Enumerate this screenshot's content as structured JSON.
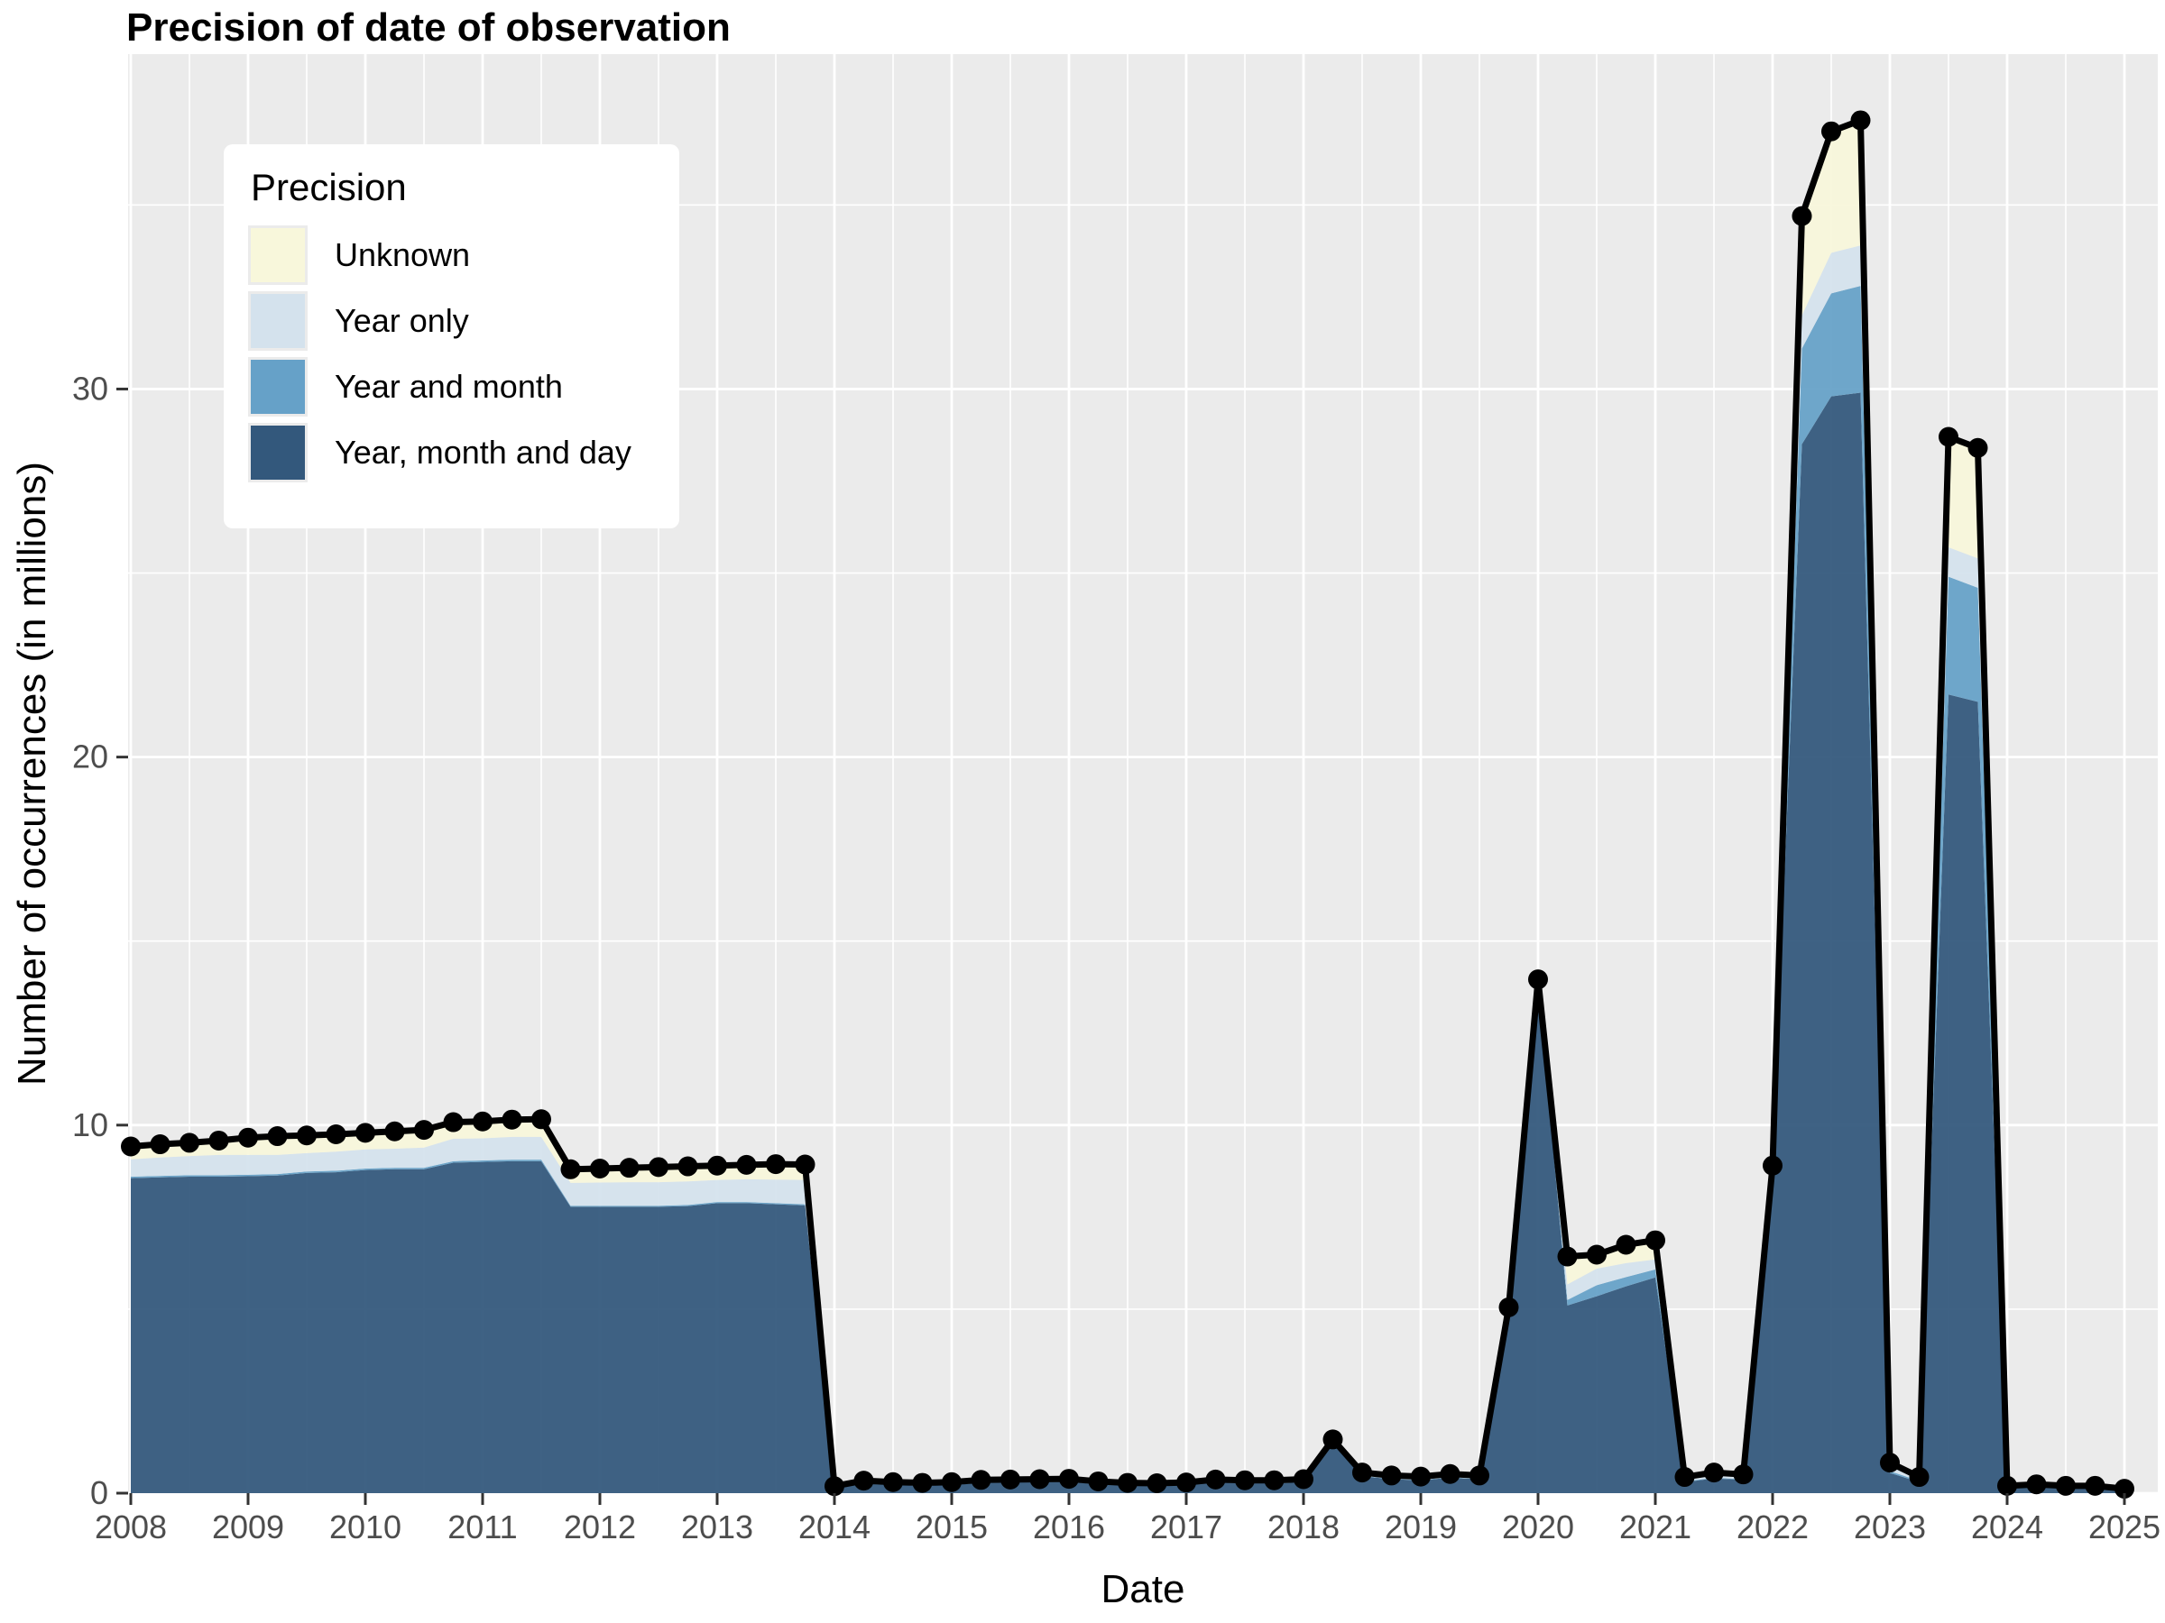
{
  "title": "Precision of date of observation",
  "axes": {
    "x_label": "Date",
    "y_label": "Number of occurrences (in millions)",
    "x_ticks": [
      "2008",
      "2009",
      "2010",
      "2011",
      "2012",
      "2013",
      "2014",
      "2015",
      "2016",
      "2017",
      "2018",
      "2019",
      "2020",
      "2021",
      "2022",
      "2023",
      "2024",
      "2025"
    ],
    "y_ticks": [
      "0",
      "10",
      "20",
      "30"
    ]
  },
  "legend": {
    "title": "Precision",
    "position": "inside top-left",
    "items": [
      {
        "label": "Unknown",
        "color": "#F8F7DB"
      },
      {
        "label": "Year only",
        "color": "#D4E2ED"
      },
      {
        "label": "Year and month",
        "color": "#66A1C8"
      },
      {
        "label": "Year, month and day",
        "color": "#33587C"
      }
    ]
  },
  "colors": {
    "panel_bg": "#EBEBEB",
    "grid": "#FFFFFF",
    "line": "#000000",
    "point": "#000000",
    "tick_text": "#4D4D4D",
    "tick_mark": "#333333"
  },
  "chart_data": {
    "type": "area",
    "stacked": true,
    "title": "Precision of date of observation",
    "xlabel": "Date",
    "ylabel": "Number of occurrences (in millions)",
    "legend_title": "Precision",
    "grid": "white major/minor gridlines on gray panel",
    "legend_position": "inside top-left",
    "overlay": "black total line with point markers at each quarter",
    "x_range": [
      2008,
      2025
    ],
    "ylim": [
      0,
      39.1
    ],
    "x_tick_vals": [
      2008,
      2009,
      2010,
      2011,
      2012,
      2013,
      2014,
      2015,
      2016,
      2017,
      2018,
      2019,
      2020,
      2021,
      2022,
      2023,
      2024,
      2025
    ],
    "y_tick_vals": [
      0,
      10,
      20,
      30
    ],
    "y_minor_vals": [
      5,
      15,
      25,
      35
    ],
    "x": [
      2008,
      2008.25,
      2008.5,
      2008.75,
      2009,
      2009.25,
      2009.5,
      2009.75,
      2010,
      2010.25,
      2010.5,
      2010.75,
      2011,
      2011.25,
      2011.5,
      2011.75,
      2012,
      2012.25,
      2012.5,
      2012.75,
      2013,
      2013.25,
      2013.5,
      2013.75,
      2014,
      2014.25,
      2014.5,
      2014.75,
      2015,
      2015.25,
      2015.5,
      2015.75,
      2016,
      2016.25,
      2016.5,
      2016.75,
      2017,
      2017.25,
      2017.5,
      2017.75,
      2018,
      2018.25,
      2018.5,
      2018.75,
      2019,
      2019.25,
      2019.5,
      2019.75,
      2020,
      2020.25,
      2020.5,
      2020.75,
      2021,
      2021.25,
      2021.5,
      2021.75,
      2022,
      2022.25,
      2022.5,
      2022.75,
      2023,
      2023.25,
      2023.5,
      2023.75,
      2024,
      2024.25,
      2024.5,
      2024.75,
      2025
    ],
    "series": [
      {
        "name": "Year, month and day",
        "color": "#33587C",
        "values": [
          8.56,
          8.58,
          8.6,
          8.6,
          8.61,
          8.63,
          8.7,
          8.72,
          8.78,
          8.8,
          8.8,
          8.98,
          9.0,
          9.02,
          9.02,
          7.78,
          7.78,
          7.78,
          7.78,
          7.8,
          7.88,
          7.88,
          7.85,
          7.82,
          0.13,
          0.26,
          0.22,
          0.2,
          0.22,
          0.28,
          0.29,
          0.3,
          0.31,
          0.24,
          0.21,
          0.2,
          0.22,
          0.29,
          0.27,
          0.27,
          0.29,
          1.36,
          0.46,
          0.38,
          0.35,
          0.42,
          0.38,
          4.95,
          13.85,
          5.1,
          5.35,
          5.62,
          5.86,
          0.3,
          0.4,
          0.36,
          8.75,
          28.5,
          29.8,
          29.9,
          0.55,
          0.3,
          21.7,
          21.5,
          0.15,
          0.18,
          0.15,
          0.15,
          0.08
        ]
      },
      {
        "name": "Year and month",
        "color": "#66A1C8",
        "values": [
          0.04,
          0.04,
          0.04,
          0.04,
          0.04,
          0.04,
          0.04,
          0.04,
          0.04,
          0.04,
          0.04,
          0.04,
          0.04,
          0.04,
          0.04,
          0.03,
          0.03,
          0.03,
          0.03,
          0.03,
          0.03,
          0.03,
          0.03,
          0.03,
          0.01,
          0.01,
          0.01,
          0.01,
          0.01,
          0.01,
          0.01,
          0.01,
          0.01,
          0.01,
          0.01,
          0.01,
          0.01,
          0.01,
          0.01,
          0.01,
          0.01,
          0.01,
          0.01,
          0.01,
          0.01,
          0.01,
          0.01,
          0.01,
          0.01,
          0.15,
          0.3,
          0.25,
          0.22,
          0.02,
          0.02,
          0.02,
          0.02,
          2.6,
          2.8,
          2.9,
          0.05,
          0.03,
          3.2,
          3.1,
          0.01,
          0.01,
          0.01,
          0.01,
          0.01
        ]
      },
      {
        "name": "Year only",
        "color": "#D4E2ED",
        "values": [
          0.47,
          0.5,
          0.52,
          0.55,
          0.54,
          0.52,
          0.5,
          0.52,
          0.52,
          0.52,
          0.55,
          0.61,
          0.6,
          0.62,
          0.62,
          0.62,
          0.63,
          0.64,
          0.64,
          0.64,
          0.6,
          0.62,
          0.64,
          0.66,
          0.02,
          0.03,
          0.03,
          0.03,
          0.03,
          0.03,
          0.03,
          0.03,
          0.03,
          0.03,
          0.03,
          0.03,
          0.03,
          0.03,
          0.03,
          0.03,
          0.04,
          0.04,
          0.04,
          0.04,
          0.04,
          0.04,
          0.04,
          0.04,
          0.05,
          0.42,
          0.45,
          0.38,
          0.27,
          0.09,
          0.11,
          0.1,
          0.06,
          0.9,
          1.1,
          1.1,
          0.13,
          0.08,
          0.8,
          0.8,
          0.02,
          0.03,
          0.02,
          0.02,
          0.02
        ]
      },
      {
        "name": "Unknown",
        "color": "#F8F7DB",
        "values": [
          0.35,
          0.36,
          0.36,
          0.39,
          0.47,
          0.51,
          0.48,
          0.47,
          0.45,
          0.47,
          0.48,
          0.45,
          0.46,
          0.47,
          0.48,
          0.37,
          0.38,
          0.39,
          0.41,
          0.41,
          0.39,
          0.39,
          0.42,
          0.42,
          0.03,
          0.04,
          0.04,
          0.04,
          0.04,
          0.04,
          0.04,
          0.04,
          0.04,
          0.04,
          0.03,
          0.03,
          0.03,
          0.04,
          0.04,
          0.04,
          0.04,
          0.05,
          0.05,
          0.05,
          0.05,
          0.05,
          0.05,
          0.05,
          0.05,
          0.76,
          0.38,
          0.5,
          0.52,
          0.03,
          0.03,
          0.03,
          0.07,
          2.7,
          3.3,
          3.4,
          0.1,
          0.03,
          3.0,
          3.0,
          0.02,
          0.02,
          0.02,
          0.02,
          0.01
        ]
      }
    ]
  }
}
